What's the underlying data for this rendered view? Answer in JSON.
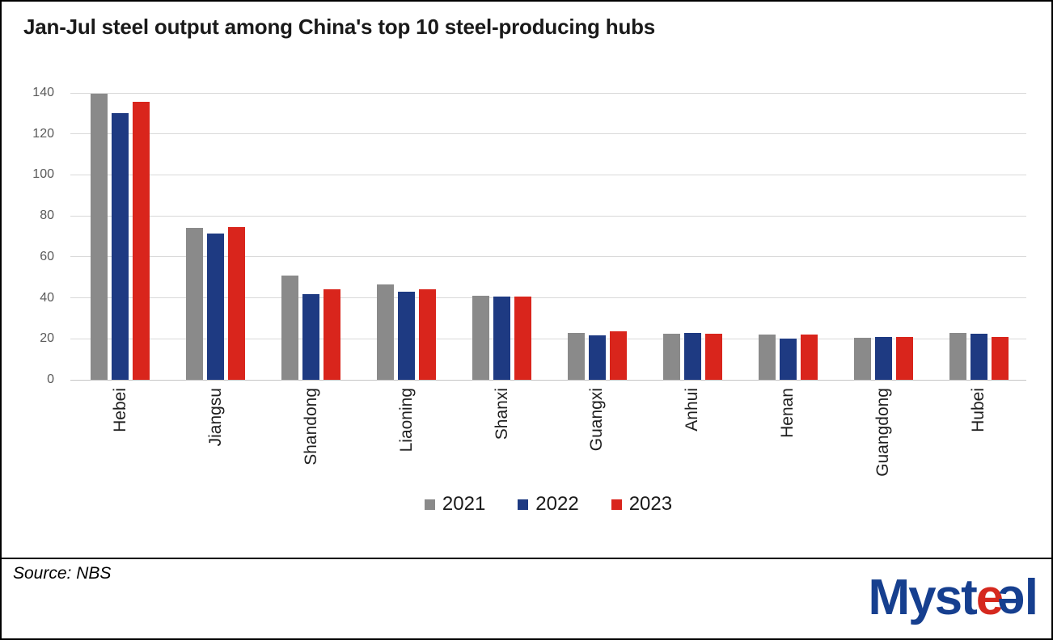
{
  "chart_data": {
    "type": "bar",
    "title": "Jan-Jul steel output among China's top 10 steel-producing hubs",
    "categories": [
      "Hebei",
      "Jiangsu",
      "Shandong",
      "Liaoning",
      "Shanxi",
      "Guangxi",
      "Anhui",
      "Henan",
      "Guangdong",
      "Hubei"
    ],
    "series": [
      {
        "name": "2021",
        "color": "#8a8a8a",
        "values": [
          139.5,
          74,
          51,
          46.5,
          41,
          23,
          22.5,
          22,
          20.5,
          23
        ]
      },
      {
        "name": "2022",
        "color": "#1e3a82",
        "values": [
          130,
          71.5,
          42,
          43,
          40.5,
          21.5,
          23,
          20,
          21,
          22.5
        ]
      },
      {
        "name": "2023",
        "color": "#d9251c",
        "values": [
          135.5,
          74.5,
          44,
          44,
          40.5,
          23.5,
          22.5,
          22,
          21,
          21
        ]
      }
    ],
    "ylim": [
      0,
      140
    ],
    "yticks": [
      0,
      20,
      40,
      60,
      80,
      100,
      120,
      140
    ],
    "xlabel": "",
    "ylabel": "",
    "grid": true,
    "legend_position": "bottom",
    "gridline_color": "#d9d9d9",
    "axis_line_color": "#c6c6c6",
    "tick_label_color": "#595959",
    "category_label_color": "#1f1f1f"
  },
  "footer": {
    "source_label": "Source: NBS",
    "logo": {
      "part_myst": "Myst",
      "part_e_red": "e",
      "part_e_blue": "e",
      "part_l": "l",
      "blue_color": "#163f8f",
      "red_color": "#d5281e"
    }
  }
}
